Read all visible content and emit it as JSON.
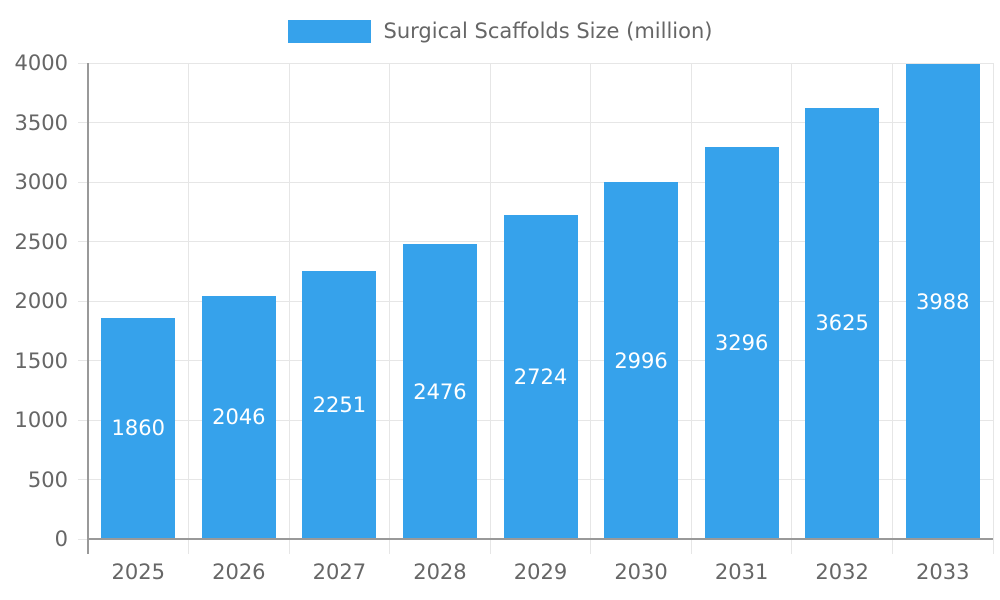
{
  "legend": {
    "label": "Surgical Scaffolds Size (million)"
  },
  "chart_data": {
    "type": "bar",
    "title": "Surgical Scaffolds Size (million)",
    "series_name": "Surgical Scaffolds Size (million)",
    "categories": [
      "2025",
      "2026",
      "2027",
      "2028",
      "2029",
      "2030",
      "2031",
      "2032",
      "2033"
    ],
    "values": [
      1860,
      2046,
      2251,
      2476,
      2724,
      2996,
      3296,
      3625,
      3988
    ],
    "xlabel": "",
    "ylabel": "",
    "ylim": [
      0,
      4000
    ],
    "y_ticks": [
      0,
      500,
      1000,
      1500,
      2000,
      2500,
      3000,
      3500,
      4000
    ],
    "y_tick_labels": [
      "0",
      "500",
      "1000",
      "1500",
      "2000",
      "2500",
      "3000",
      "3500",
      "4000"
    ],
    "grid": true,
    "legend_position": "top",
    "value_labels": "centered-inside-bars",
    "bar_color": "#36a2eb",
    "value_label_color": "#ffffff",
    "grid_color": "#e6e6e6",
    "axis_color": "#999999",
    "text_color": "#666666"
  }
}
